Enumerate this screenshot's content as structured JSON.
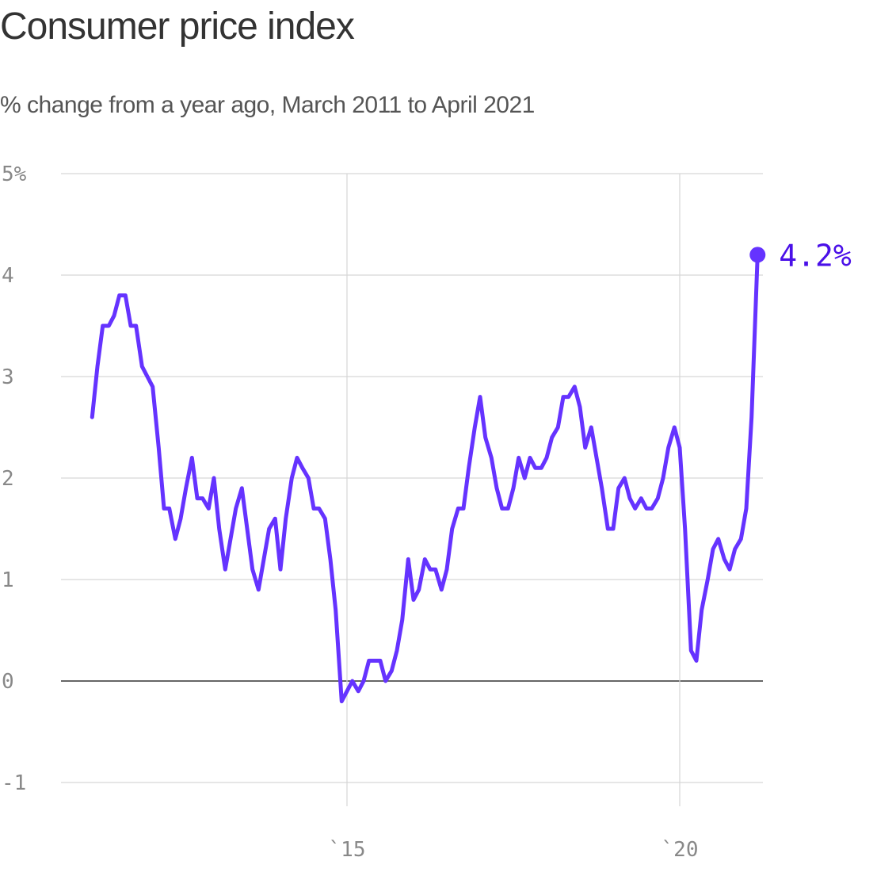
{
  "chart_data": {
    "type": "line",
    "title": "Consumer price index",
    "subtitle": "% change from a year ago, March 2011 to April 2021",
    "xlabel": "",
    "ylabel": "",
    "ylim": [
      -1,
      5
    ],
    "xlim": [
      2011.0,
      2021.5
    ],
    "y_ticks": [
      5,
      4,
      3,
      2,
      1,
      0,
      -1
    ],
    "y_tick_labels": [
      "5%",
      "4",
      "3",
      "2",
      "1",
      "0",
      "-1"
    ],
    "x_ticks": [
      2015,
      2020
    ],
    "x_tick_labels": [
      "`15",
      "`20"
    ],
    "grid": "on",
    "zero_line": true,
    "color": "#6533ff",
    "end_label": "4.2%",
    "end_label_color": "#4a10e8",
    "series": [
      {
        "values": [
          [
            2011.17,
            2.6
          ],
          [
            2011.25,
            3.1
          ],
          [
            2011.33,
            3.5
          ],
          [
            2011.42,
            3.5
          ],
          [
            2011.5,
            3.6
          ],
          [
            2011.58,
            3.8
          ],
          [
            2011.67,
            3.8
          ],
          [
            2011.75,
            3.5
          ],
          [
            2011.83,
            3.5
          ],
          [
            2011.92,
            3.1
          ],
          [
            2012.0,
            3.0
          ],
          [
            2012.08,
            2.9
          ],
          [
            2012.17,
            2.3
          ],
          [
            2012.25,
            1.7
          ],
          [
            2012.33,
            1.7
          ],
          [
            2012.42,
            1.4
          ],
          [
            2012.5,
            1.6
          ],
          [
            2012.58,
            1.9
          ],
          [
            2012.67,
            2.2
          ],
          [
            2012.75,
            1.8
          ],
          [
            2012.83,
            1.8
          ],
          [
            2012.92,
            1.7
          ],
          [
            2013.0,
            2.0
          ],
          [
            2013.08,
            1.5
          ],
          [
            2013.17,
            1.1
          ],
          [
            2013.25,
            1.4
          ],
          [
            2013.33,
            1.7
          ],
          [
            2013.42,
            1.9
          ],
          [
            2013.5,
            1.5
          ],
          [
            2013.58,
            1.1
          ],
          [
            2013.67,
            0.9
          ],
          [
            2013.75,
            1.2
          ],
          [
            2013.83,
            1.5
          ],
          [
            2013.92,
            1.6
          ],
          [
            2014.0,
            1.1
          ],
          [
            2014.08,
            1.6
          ],
          [
            2014.17,
            2.0
          ],
          [
            2014.25,
            2.2
          ],
          [
            2014.33,
            2.1
          ],
          [
            2014.42,
            2.0
          ],
          [
            2014.5,
            1.7
          ],
          [
            2014.58,
            1.7
          ],
          [
            2014.67,
            1.6
          ],
          [
            2014.75,
            1.2
          ],
          [
            2014.83,
            0.7
          ],
          [
            2014.92,
            -0.2
          ],
          [
            2015.0,
            -0.1
          ],
          [
            2015.08,
            0.0
          ],
          [
            2015.17,
            -0.1
          ],
          [
            2015.25,
            0.0
          ],
          [
            2015.33,
            0.2
          ],
          [
            2015.42,
            0.2
          ],
          [
            2015.5,
            0.2
          ],
          [
            2015.58,
            0.0
          ],
          [
            2015.67,
            0.1
          ],
          [
            2015.75,
            0.3
          ],
          [
            2015.83,
            0.6
          ],
          [
            2015.92,
            1.2
          ],
          [
            2016.0,
            0.8
          ],
          [
            2016.08,
            0.9
          ],
          [
            2016.17,
            1.2
          ],
          [
            2016.25,
            1.1
          ],
          [
            2016.33,
            1.1
          ],
          [
            2016.42,
            0.9
          ],
          [
            2016.5,
            1.1
          ],
          [
            2016.58,
            1.5
          ],
          [
            2016.67,
            1.7
          ],
          [
            2016.75,
            1.7
          ],
          [
            2016.83,
            2.1
          ],
          [
            2016.92,
            2.5
          ],
          [
            2017.0,
            2.8
          ],
          [
            2017.08,
            2.4
          ],
          [
            2017.17,
            2.2
          ],
          [
            2017.25,
            1.9
          ],
          [
            2017.33,
            1.7
          ],
          [
            2017.42,
            1.7
          ],
          [
            2017.5,
            1.9
          ],
          [
            2017.58,
            2.2
          ],
          [
            2017.67,
            2.0
          ],
          [
            2017.75,
            2.2
          ],
          [
            2017.83,
            2.1
          ],
          [
            2017.92,
            2.1
          ],
          [
            2018.0,
            2.2
          ],
          [
            2018.08,
            2.4
          ],
          [
            2018.17,
            2.5
          ],
          [
            2018.25,
            2.8
          ],
          [
            2018.33,
            2.8
          ],
          [
            2018.42,
            2.9
          ],
          [
            2018.5,
            2.7
          ],
          [
            2018.58,
            2.3
          ],
          [
            2018.67,
            2.5
          ],
          [
            2018.75,
            2.2
          ],
          [
            2018.83,
            1.9
          ],
          [
            2018.92,
            1.5
          ],
          [
            2019.0,
            1.5
          ],
          [
            2019.08,
            1.9
          ],
          [
            2019.17,
            2.0
          ],
          [
            2019.25,
            1.8
          ],
          [
            2019.33,
            1.7
          ],
          [
            2019.42,
            1.8
          ],
          [
            2019.5,
            1.7
          ],
          [
            2019.58,
            1.7
          ],
          [
            2019.67,
            1.8
          ],
          [
            2019.75,
            2.0
          ],
          [
            2019.83,
            2.3
          ],
          [
            2019.92,
            2.5
          ],
          [
            2020.0,
            2.3
          ],
          [
            2020.08,
            1.5
          ],
          [
            2020.17,
            0.3
          ],
          [
            2020.25,
            0.2
          ],
          [
            2020.33,
            0.7
          ],
          [
            2020.42,
            1.0
          ],
          [
            2020.5,
            1.3
          ],
          [
            2020.58,
            1.4
          ],
          [
            2020.67,
            1.2
          ],
          [
            2020.75,
            1.1
          ],
          [
            2020.83,
            1.3
          ],
          [
            2020.92,
            1.4
          ],
          [
            2021.0,
            1.7
          ],
          [
            2021.08,
            2.6
          ],
          [
            2021.17,
            4.2
          ]
        ]
      }
    ]
  }
}
